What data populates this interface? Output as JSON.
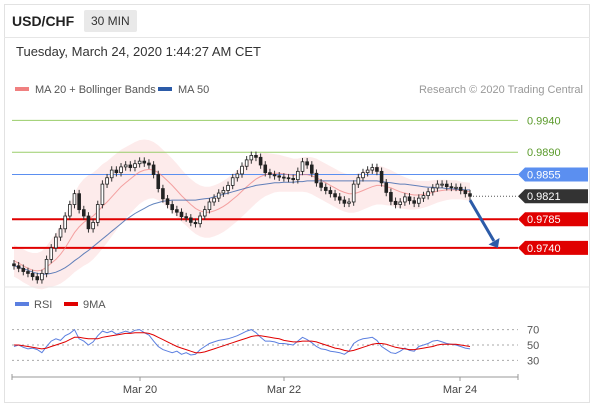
{
  "header": {
    "symbol": "USD/CHF",
    "timeframe": "30 MIN",
    "timestamp": "Tuesday, March 24, 2020 1:44:27 AM CET"
  },
  "colors": {
    "bollinger": "#f08080",
    "ma50": "#2c5ba8",
    "resistance": "#9acd6a",
    "pivot": "#5b8ff0",
    "support": "#e00000",
    "current": "#333333",
    "arrow": "#2c5ba8",
    "rsi": "#5b7fe0",
    "rsi_ma": "#e00000"
  },
  "chart_data": [
    {
      "type": "line",
      "name": "price",
      "legend": [
        {
          "label": "MA 20 + Bollinger Bands",
          "color": "#f08080"
        },
        {
          "label": "MA 50",
          "color": "#2c5ba8"
        }
      ],
      "credit": "Research © 2020 Trading Central",
      "x_ticks": [
        "Mar 20",
        "Mar 22",
        "Mar 24"
      ],
      "ylim": [
        0.9685,
        0.9975
      ],
      "levels": [
        {
          "value": 0.994,
          "label": "0.9940",
          "kind": "resistance"
        },
        {
          "value": 0.989,
          "label": "0.9890",
          "kind": "resistance"
        },
        {
          "value": 0.9855,
          "label": "0.9855",
          "kind": "pivot"
        },
        {
          "value": 0.9821,
          "label": "0.9821",
          "kind": "current"
        },
        {
          "value": 0.9785,
          "label": "0.9785",
          "kind": "support"
        },
        {
          "value": 0.974,
          "label": "0.9740",
          "kind": "support"
        }
      ],
      "close": [
        0.9712,
        0.9708,
        0.9703,
        0.97,
        0.9695,
        0.969,
        0.97,
        0.9722,
        0.974,
        0.9757,
        0.977,
        0.979,
        0.9808,
        0.9825,
        0.98,
        0.979,
        0.977,
        0.978,
        0.9808,
        0.984,
        0.985,
        0.9862,
        0.9858,
        0.9867,
        0.987,
        0.9866,
        0.9872,
        0.9876,
        0.9873,
        0.987,
        0.9855,
        0.9833,
        0.9817,
        0.9808,
        0.98,
        0.9796,
        0.9789,
        0.9787,
        0.978,
        0.9778,
        0.979,
        0.98,
        0.9812,
        0.9818,
        0.9826,
        0.983,
        0.9838,
        0.985,
        0.9856,
        0.9868,
        0.9878,
        0.9885,
        0.9882,
        0.987,
        0.9858,
        0.9855,
        0.9853,
        0.9851,
        0.985,
        0.9849,
        0.9847,
        0.986,
        0.9875,
        0.987,
        0.9857,
        0.9842,
        0.9835,
        0.983,
        0.9825,
        0.982,
        0.9815,
        0.981,
        0.9812,
        0.984,
        0.985,
        0.9858,
        0.9862,
        0.9866,
        0.986,
        0.9842,
        0.9827,
        0.9813,
        0.9808,
        0.9812,
        0.982,
        0.9814,
        0.981,
        0.9818,
        0.9822,
        0.9828,
        0.9834,
        0.984,
        0.984,
        0.9836,
        0.9835,
        0.9835,
        0.983,
        0.9825,
        0.9821
      ],
      "ma20": [
        0.972,
        0.9716,
        0.9712,
        0.9708,
        0.9705,
        0.9704,
        0.9705,
        0.971,
        0.9716,
        0.9722,
        0.973,
        0.974,
        0.9752,
        0.9764,
        0.9773,
        0.978,
        0.9785,
        0.979,
        0.9797,
        0.9805,
        0.9812,
        0.982,
        0.9828,
        0.9836,
        0.9842,
        0.9848,
        0.9854,
        0.9859,
        0.9862,
        0.9863,
        0.9862,
        0.9858,
        0.9852,
        0.9845,
        0.9838,
        0.983,
        0.9822,
        0.9815,
        0.9808,
        0.9802,
        0.9798,
        0.9796,
        0.9796,
        0.9798,
        0.9801,
        0.9805,
        0.981,
        0.9816,
        0.9822,
        0.9829,
        0.9836,
        0.9842,
        0.9848,
        0.9852,
        0.9855,
        0.9856,
        0.9857,
        0.9857,
        0.9856,
        0.9855,
        0.9854,
        0.9854,
        0.9855,
        0.9855,
        0.9853,
        0.985,
        0.9846,
        0.9842,
        0.9838,
        0.9834,
        0.983,
        0.9827,
        0.9825,
        0.9825,
        0.9827,
        0.983,
        0.9833,
        0.9836,
        0.9838,
        0.9838,
        0.9836,
        0.9834,
        0.9831,
        0.9828,
        0.9826,
        0.9824,
        0.9823,
        0.9823,
        0.9824,
        0.9825,
        0.9827,
        0.9829,
        0.983,
        0.9831,
        0.9831,
        0.9831,
        0.983,
        0.9829,
        0.9828
      ],
      "bb_width": [
        0.0025,
        0.0025,
        0.0026,
        0.0026,
        0.0027,
        0.0028,
        0.003,
        0.0033,
        0.0037,
        0.0041,
        0.0046,
        0.0051,
        0.0057,
        0.0062,
        0.0066,
        0.0068,
        0.0069,
        0.0068,
        0.0067,
        0.0066,
        0.0064,
        0.0062,
        0.006,
        0.0058,
        0.0056,
        0.0054,
        0.0052,
        0.005,
        0.0048,
        0.0046,
        0.0044,
        0.0043,
        0.0042,
        0.0042,
        0.0042,
        0.0042,
        0.0041,
        0.004,
        0.004,
        0.004,
        0.004,
        0.004,
        0.004,
        0.004,
        0.004,
        0.004,
        0.004,
        0.004,
        0.004,
        0.004,
        0.004,
        0.0039,
        0.0038,
        0.0036,
        0.0034,
        0.0032,
        0.003,
        0.0029,
        0.0028,
        0.0027,
        0.0026,
        0.0026,
        0.0027,
        0.0028,
        0.0029,
        0.003,
        0.003,
        0.003,
        0.003,
        0.003,
        0.003,
        0.003,
        0.003,
        0.003,
        0.003,
        0.003,
        0.003,
        0.003,
        0.003,
        0.003,
        0.0029,
        0.0028,
        0.0027,
        0.0026,
        0.0025,
        0.0024,
        0.0023,
        0.0022,
        0.0021,
        0.002,
        0.0019,
        0.0018,
        0.0017,
        0.0016,
        0.0015,
        0.0015,
        0.0014,
        0.0014,
        0.0014
      ],
      "ma50": [
        0.9712,
        0.971,
        0.9707,
        0.9705,
        0.9702,
        0.97,
        0.9699,
        0.9699,
        0.97,
        0.9702,
        0.9705,
        0.9709,
        0.9714,
        0.972,
        0.9725,
        0.9731,
        0.9736,
        0.9742,
        0.9748,
        0.9754,
        0.976,
        0.9766,
        0.9772,
        0.9778,
        0.9784,
        0.9789,
        0.9794,
        0.9798,
        0.9802,
        0.9806,
        0.9809,
        0.9811,
        0.9813,
        0.9814,
        0.9815,
        0.9815,
        0.9815,
        0.9815,
        0.9815,
        0.9815,
        0.9816,
        0.9817,
        0.9818,
        0.982,
        0.9822,
        0.9824,
        0.9826,
        0.9828,
        0.983,
        0.9832,
        0.9834,
        0.9836,
        0.9838,
        0.9839,
        0.984,
        0.9841,
        0.9842,
        0.9842,
        0.9843,
        0.9843,
        0.9843,
        0.9844,
        0.9844,
        0.9845,
        0.9845,
        0.9845,
        0.9845,
        0.9845,
        0.9845,
        0.9845,
        0.9845,
        0.9845,
        0.9845,
        0.9845,
        0.9845,
        0.9845,
        0.9845,
        0.9845,
        0.9845,
        0.9844,
        0.9843,
        0.9842,
        0.9841,
        0.984,
        0.984,
        0.9839,
        0.9838,
        0.9837,
        0.9836,
        0.9835,
        0.9835,
        0.9834,
        0.9834,
        0.9833,
        0.9833,
        0.9832,
        0.9832,
        0.9831,
        0.9831
      ],
      "forecast_arrow": {
        "from": {
          "index": 98,
          "value": 0.9815
        },
        "to": {
          "index": 104,
          "value": 0.974
        }
      }
    },
    {
      "type": "line",
      "name": "rsi",
      "legend": [
        {
          "label": "RSI",
          "color": "#5b7fe0"
        },
        {
          "label": "9MA",
          "color": "#e00000"
        }
      ],
      "levels": [
        {
          "value": 70,
          "label": "70"
        },
        {
          "value": 50,
          "label": "50"
        },
        {
          "value": 30,
          "label": "30"
        }
      ],
      "ylim": [
        15,
        85
      ],
      "rsi": [
        48,
        50,
        47,
        45,
        46,
        44,
        40,
        48,
        55,
        58,
        56,
        62,
        65,
        70,
        58,
        55,
        50,
        54,
        62,
        68,
        66,
        68,
        64,
        66,
        68,
        66,
        69,
        70,
        66,
        63,
        55,
        48,
        44,
        42,
        40,
        42,
        38,
        40,
        37,
        38,
        44,
        48,
        52,
        54,
        56,
        57,
        58,
        60,
        62,
        65,
        68,
        70,
        66,
        60,
        55,
        55,
        54,
        52,
        52,
        51,
        50,
        55,
        60,
        57,
        53,
        48,
        45,
        44,
        42,
        41,
        40,
        38,
        42,
        52,
        56,
        58,
        59,
        60,
        56,
        48,
        44,
        40,
        39,
        42,
        46,
        43,
        42,
        48,
        50,
        52,
        55,
        56,
        54,
        52,
        51,
        50,
        48,
        46,
        45
      ],
      "rsi_ma": [
        50,
        50,
        49,
        48,
        47,
        46,
        45,
        46,
        48,
        50,
        52,
        54,
        57,
        60,
        60,
        59,
        58,
        58,
        58,
        60,
        61,
        62,
        63,
        64,
        65,
        65,
        66,
        66,
        66,
        65,
        63,
        60,
        57,
        54,
        51,
        48,
        46,
        44,
        42,
        40,
        40,
        41,
        43,
        45,
        47,
        49,
        51,
        53,
        55,
        57,
        59,
        61,
        62,
        62,
        61,
        60,
        59,
        58,
        56,
        55,
        54,
        54,
        55,
        55,
        55,
        54,
        52,
        50,
        48,
        46,
        45,
        43,
        42,
        43,
        45,
        47,
        49,
        51,
        52,
        52,
        51,
        49,
        47,
        46,
        45,
        44,
        44,
        45,
        46,
        47,
        48,
        50,
        51,
        51,
        51,
        51,
        50,
        49,
        48
      ]
    }
  ]
}
